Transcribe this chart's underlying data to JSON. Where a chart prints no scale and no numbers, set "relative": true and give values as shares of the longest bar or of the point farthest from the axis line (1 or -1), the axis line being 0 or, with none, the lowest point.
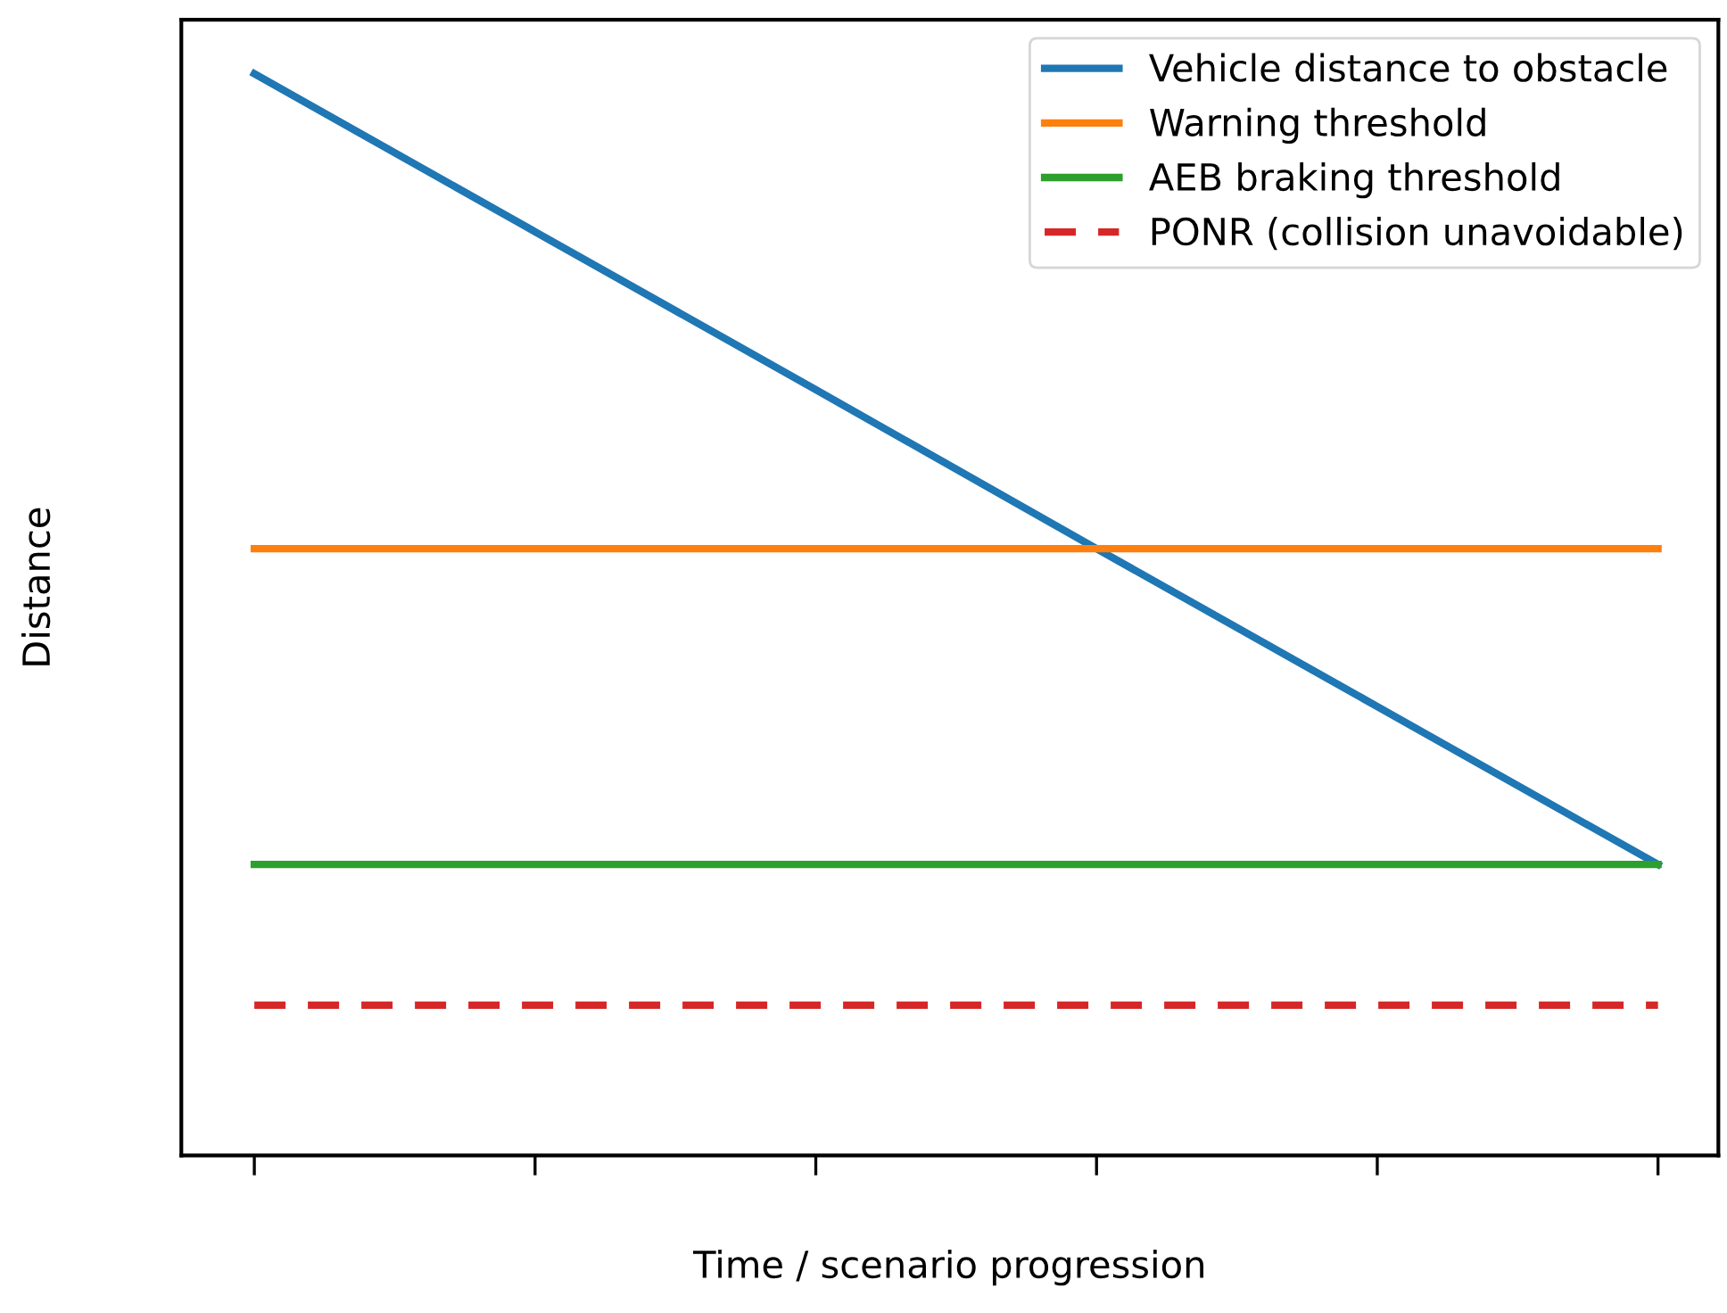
{
  "chart_data": {
    "type": "line",
    "relative": true,
    "xlabel": "Time / scenario progression",
    "ylabel": "Distance",
    "categories": [
      null,
      null,
      null,
      null,
      null,
      null
    ],
    "tick_labels": false,
    "legend": "top right",
    "grid": false,
    "marker": "none",
    "series": [
      {
        "name": "Vehicle distance to obstacle",
        "color": "#1f77b4",
        "values": [
          1,
          0.854,
          0.708,
          0.561,
          0.415,
          0.269
        ],
        "line_style": "solid"
      },
      {
        "name": "Warning threshold",
        "color": "#ff7f0e",
        "values": [
          0.561,
          0.561,
          0.561,
          0.561,
          0.561,
          0.561
        ],
        "line_style": "solid"
      },
      {
        "name": "AEB braking threshold",
        "color": "#2ca02c",
        "values": [
          0.269,
          0.269,
          0.269,
          0.269,
          0.269,
          0.269
        ],
        "line_style": "solid"
      },
      {
        "name": "PONR (collision unavoidable)",
        "color": "#d62728",
        "values": [
          0.139,
          0.139,
          0.139,
          0.139,
          0.139,
          0.139
        ],
        "line_style": "dashed"
      }
    ]
  }
}
